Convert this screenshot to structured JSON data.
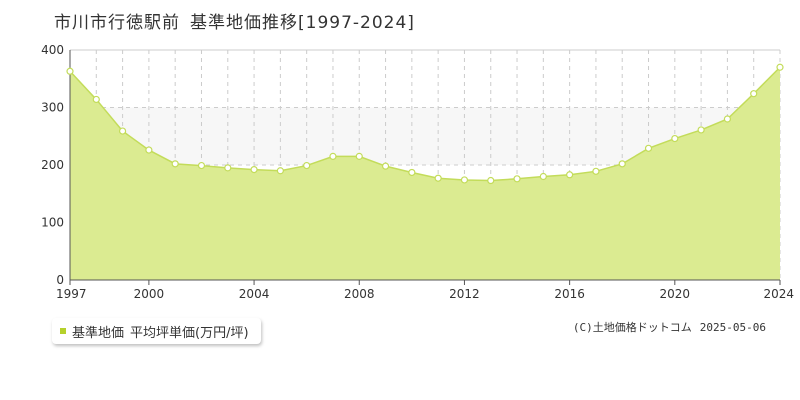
{
  "title": {
    "station": "市川市行徳駅前",
    "subject": "基準地価推移[1997-2024]"
  },
  "legend": {
    "label": "基準地価",
    "unit": "平均坪単価(万円/坪)"
  },
  "credit": {
    "source": "(C)土地価格ドットコム",
    "date": "2025-05-06"
  },
  "colors": {
    "fill": "#dbeb91",
    "line": "#c3dc5a",
    "point_fill": "#ffffff",
    "grid": "#cccccc",
    "band": "#f7f7f7",
    "legend_swatch": "#b5d12b"
  },
  "chart_data": {
    "type": "area",
    "title": "",
    "xlabel": "",
    "ylabel": "",
    "xlim": [
      1997,
      2024
    ],
    "ylim": [
      0,
      400
    ],
    "x_ticks": [
      1997,
      2000,
      2004,
      2008,
      2012,
      2016,
      2020,
      2024
    ],
    "y_ticks": [
      0,
      100,
      200,
      300,
      400
    ],
    "grid": true,
    "series": [
      {
        "name": "基準地価 平均坪単価(万円/坪)",
        "x": [
          1997,
          1998,
          1999,
          2000,
          2001,
          2002,
          2003,
          2004,
          2005,
          2006,
          2007,
          2008,
          2009,
          2010,
          2011,
          2012,
          2013,
          2014,
          2015,
          2016,
          2017,
          2018,
          2019,
          2020,
          2021,
          2022,
          2023,
          2024
        ],
        "values": [
          363,
          314,
          259,
          226,
          202,
          199,
          195,
          192,
          190,
          199,
          215,
          215,
          198,
          187,
          177,
          174,
          173,
          176,
          180,
          183,
          189,
          202,
          229,
          246,
          261,
          280,
          324,
          370
        ]
      }
    ]
  }
}
